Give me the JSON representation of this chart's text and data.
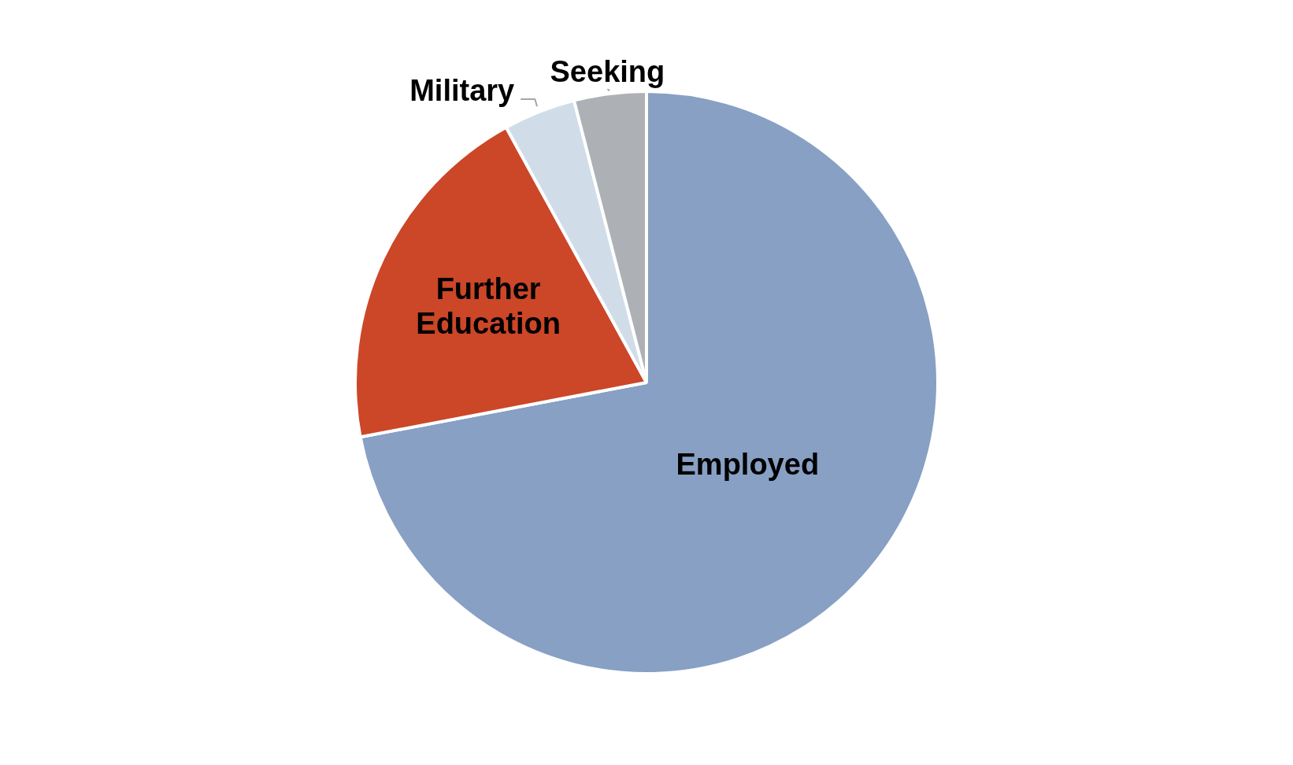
{
  "chart_data": {
    "type": "pie",
    "categories": [
      "Employed",
      "Further Education",
      "Military",
      "Seeking"
    ],
    "values": [
      72,
      20,
      4,
      4
    ],
    "colors": [
      "#87a0c4",
      "#cc4628",
      "#d0dde9",
      "#adb1b5"
    ]
  }
}
